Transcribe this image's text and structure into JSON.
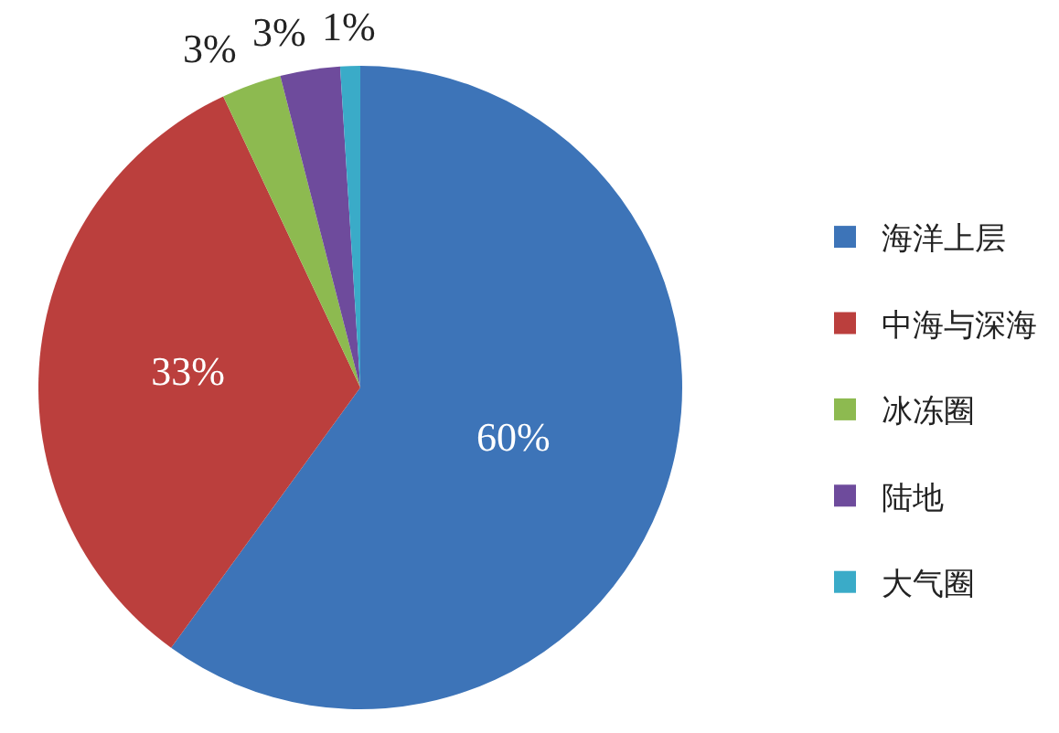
{
  "chart_data": {
    "type": "pie",
    "categories": [
      "海洋上层",
      "中海与深海",
      "冰冻圈",
      "陆地",
      "大气圈"
    ],
    "values": [
      60,
      33,
      3,
      3,
      1
    ],
    "colors": [
      "#3d74b8",
      "#bb3f3d",
      "#8dba50",
      "#6e4b9c",
      "#3aabc8"
    ],
    "value_labels": [
      "60%",
      "33%",
      "3%",
      "3%",
      "1%"
    ],
    "legend": "right"
  }
}
